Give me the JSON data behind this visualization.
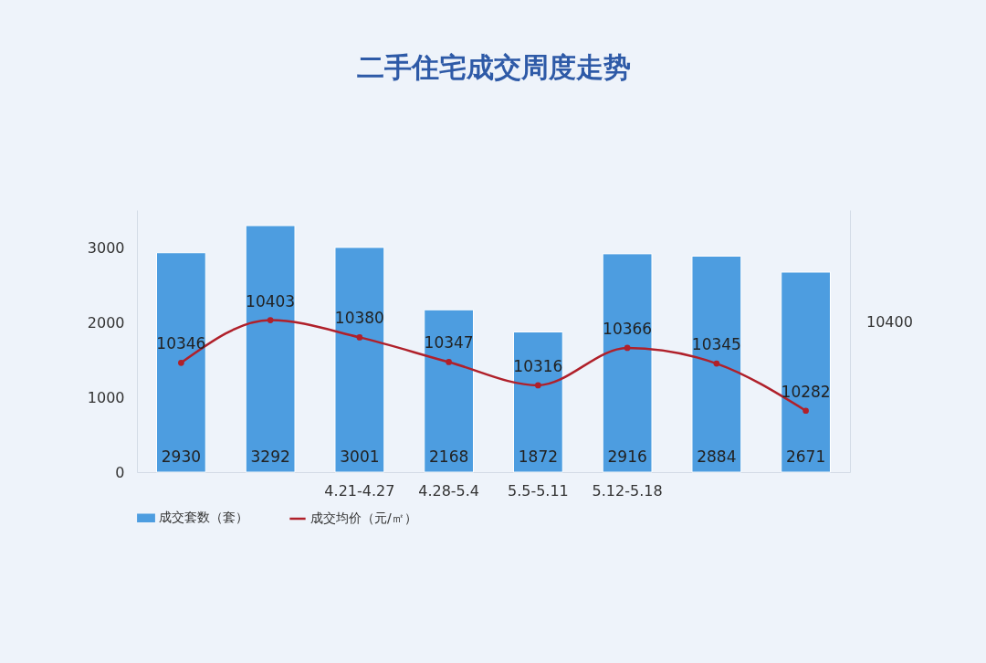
{
  "chart_data": {
    "type": "bar",
    "title": "二手住宅成交周度走势",
    "categories": [
      null,
      null,
      "4.21-4.27",
      "4.28-5.4",
      "5.5-5.11",
      "5.12-5.18",
      null,
      null
    ],
    "series": [
      {
        "name": "成交套数（套）",
        "color": "#4d9de0",
        "values": [
          2930,
          3292,
          3001,
          2168,
          1872,
          2916,
          2884,
          2671
        ]
      },
      {
        "name": "成交均价（元/㎡）",
        "type": "line",
        "axis": "y2",
        "color": "#b0202a",
        "values": [
          10346,
          10403,
          10380,
          10347,
          10316,
          10366,
          10345,
          10282
        ]
      }
    ],
    "ylim": [
      0,
      3500
    ],
    "yticks": [
      0,
      1000,
      2000,
      3000
    ],
    "y2lim": [
      10200,
      10550
    ],
    "annotations": [
      "10400"
    ],
    "marker": "circle",
    "data_labels": true,
    "legend": "bottom",
    "grid": false
  }
}
